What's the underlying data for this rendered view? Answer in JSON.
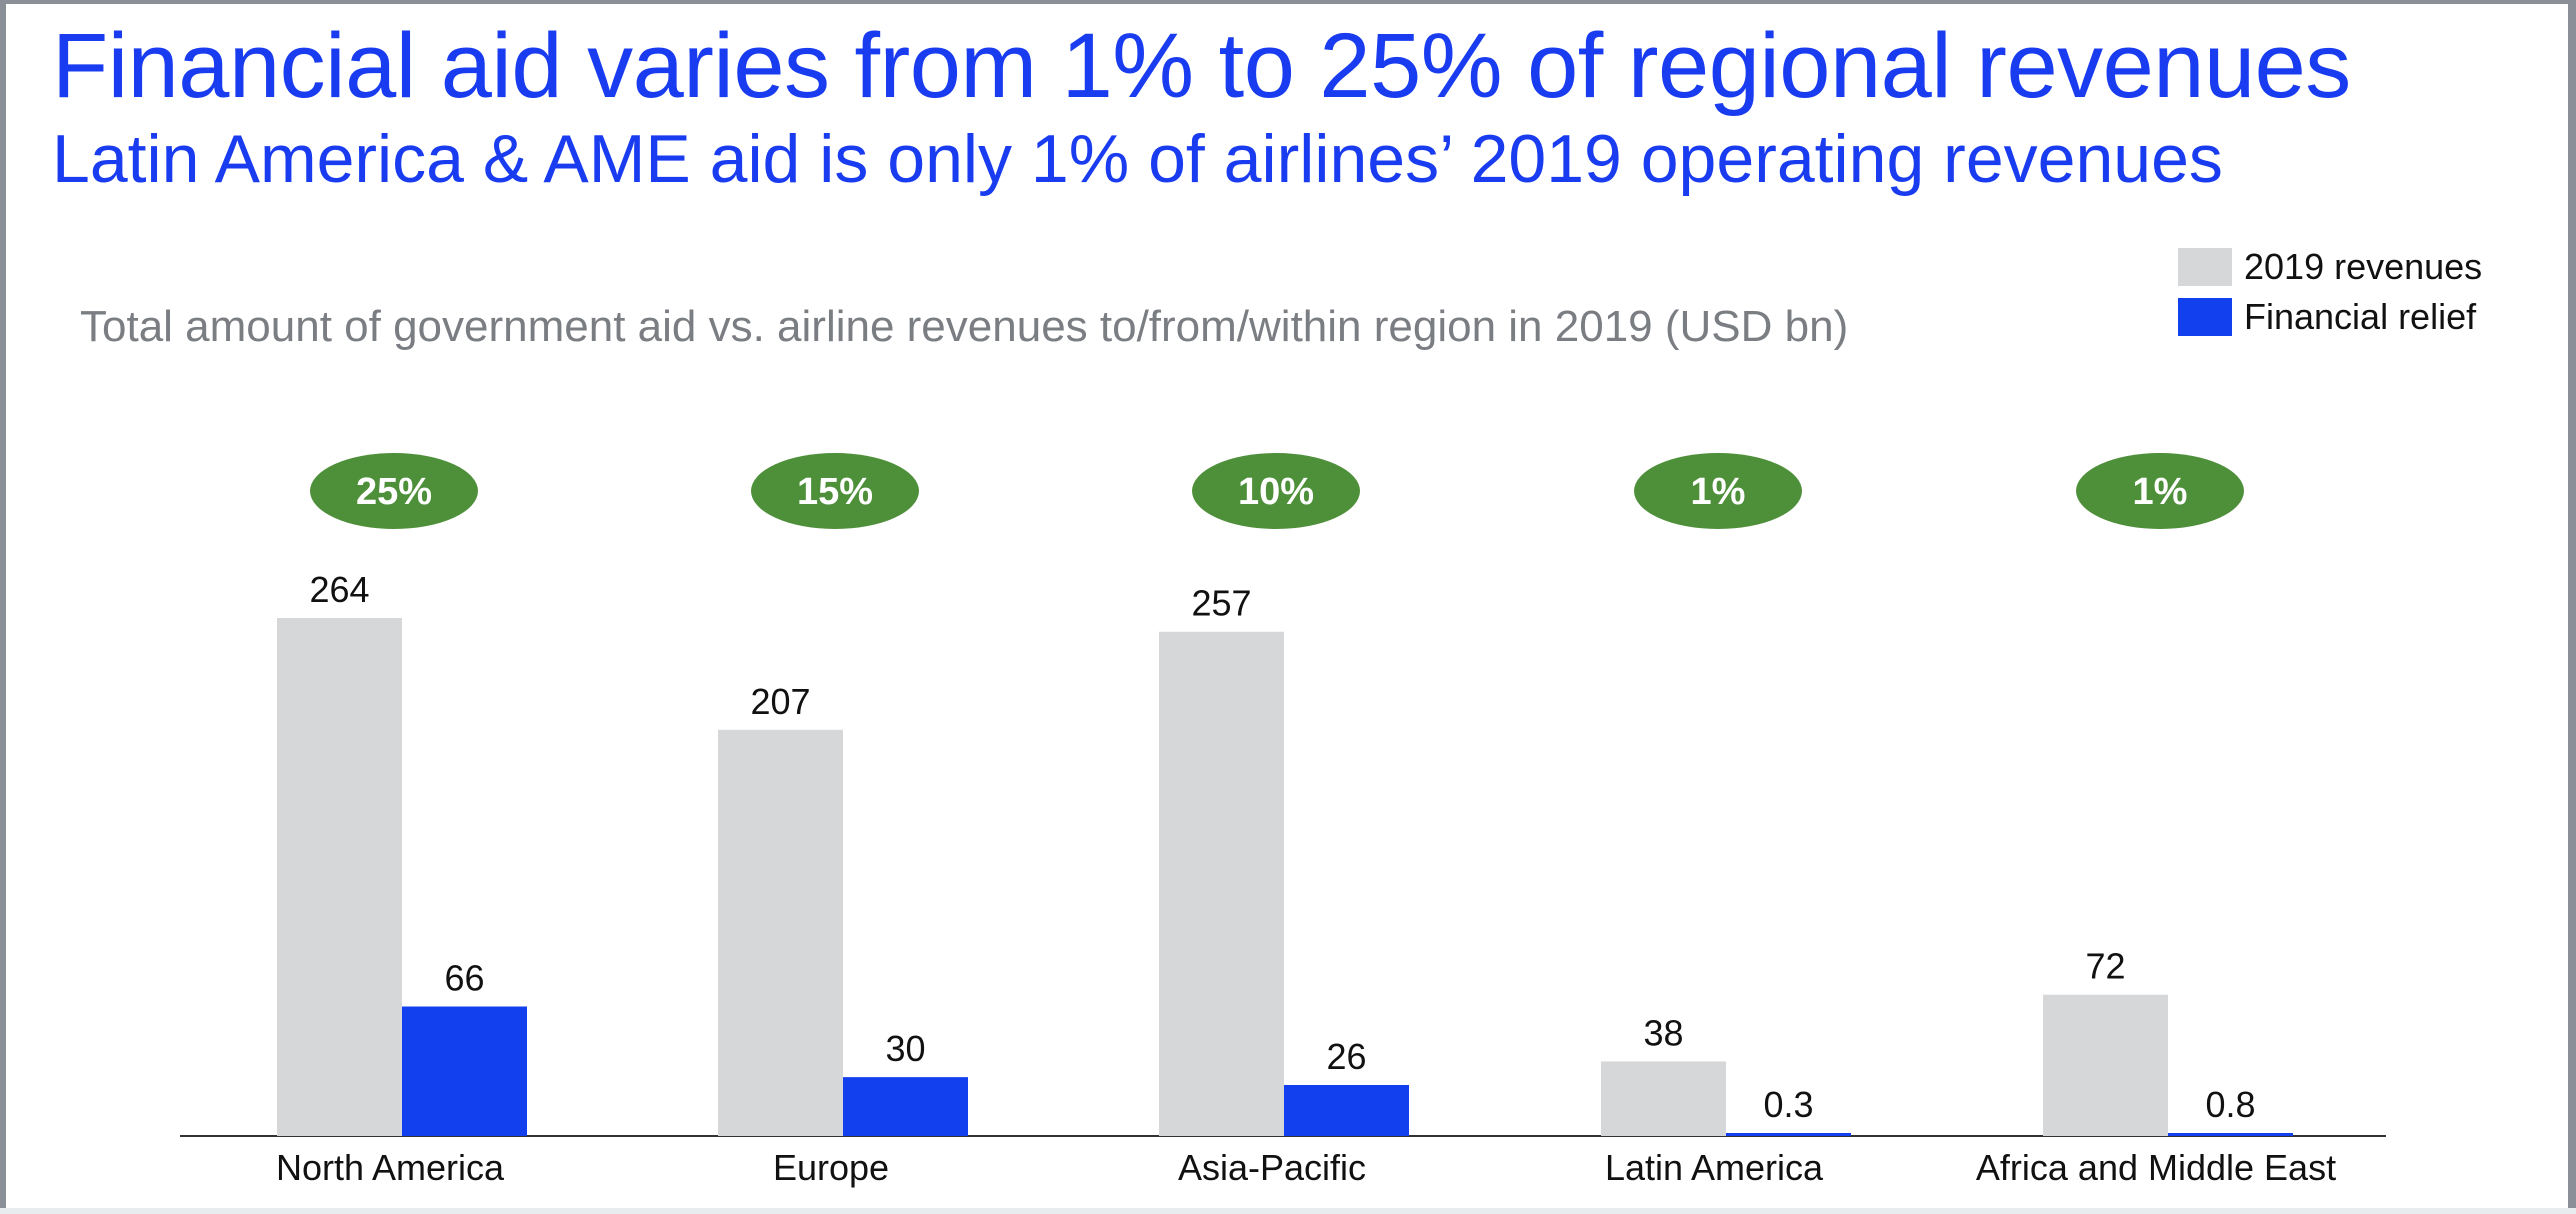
{
  "title": "Financial aid varies from 1% to 25% of regional revenues",
  "subtitle": "Latin America & AME aid is only 1% of airlines’ 2019 operating revenues",
  "colors": {
    "title": "#1a3cf0",
    "revenues": "#d6d7d9",
    "relief": "#1240ee",
    "badge": "#4e8f3a",
    "axis": "#333333"
  },
  "chart_data": {
    "type": "bar",
    "title": "Total amount of government aid vs. airline revenues to/from/within region in 2019 (USD bn)",
    "categories": [
      "North America",
      "Europe",
      "Asia-Pacific",
      "Latin America",
      "Africa and Middle East"
    ],
    "series": [
      {
        "name": "2019 revenues",
        "values": [
          264,
          207,
          257,
          38,
          72
        ],
        "labels": [
          "264",
          "207",
          "257",
          "38",
          "72"
        ]
      },
      {
        "name": "Financial relief",
        "values": [
          66,
          30,
          26,
          0.3,
          0.8
        ],
        "labels": [
          "66",
          "30",
          "26",
          "0.3",
          "0.8"
        ]
      }
    ],
    "annotations": [
      "25%",
      "15%",
      "10%",
      "1%",
      "1%"
    ],
    "ylim": [
      0,
      264
    ],
    "legend_position": "top-right",
    "grid": false
  }
}
